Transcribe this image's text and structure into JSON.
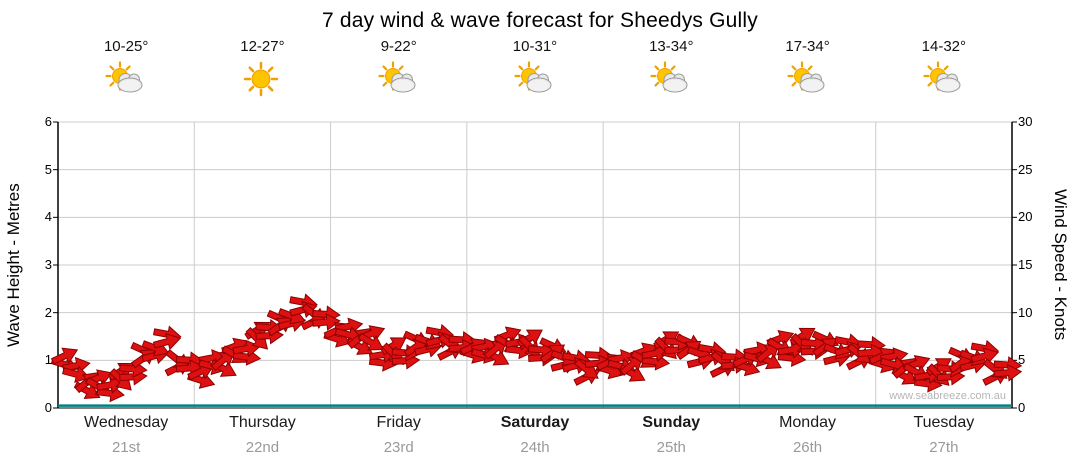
{
  "title": "7 day wind & wave forecast for Sheedys Gully",
  "watermark": "www.seabreeze.com.au",
  "colors": {
    "arrow_fill": "#dd1111",
    "arrow_stroke": "#8f0000",
    "wave_line": "#008080",
    "gridline": "#cccccc",
    "axis": "#000000",
    "date_text": "#9a9a9a"
  },
  "axes": {
    "left_label": "Wave Height - Metres",
    "right_label": "Wind Speed - Knots",
    "left_ticks": [
      0,
      1,
      2,
      3,
      4,
      5,
      6
    ],
    "right_ticks": [
      0,
      5,
      10,
      15,
      20,
      25,
      30
    ]
  },
  "days": [
    {
      "name": "Wednesday",
      "date": "21st",
      "temp": "10-25°",
      "icon": "partly-cloudy",
      "bold": false
    },
    {
      "name": "Thursday",
      "date": "22nd",
      "temp": "12-27°",
      "icon": "sunny",
      "bold": false
    },
    {
      "name": "Friday",
      "date": "23rd",
      "temp": "9-22°",
      "icon": "partly-cloudy",
      "bold": false
    },
    {
      "name": "Saturday",
      "date": "24th",
      "temp": "10-31°",
      "icon": "partly-cloudy",
      "bold": true
    },
    {
      "name": "Sunday",
      "date": "25th",
      "temp": "13-34°",
      "icon": "partly-cloudy",
      "bold": true
    },
    {
      "name": "Monday",
      "date": "26th",
      "temp": "17-34°",
      "icon": "partly-cloudy",
      "bold": false
    },
    {
      "name": "Tuesday",
      "date": "27th",
      "temp": "14-32°",
      "icon": "partly-cloudy",
      "bold": false
    }
  ],
  "chart_data": {
    "type": "scatter",
    "title": "7 day wind & wave forecast for Sheedys Gully",
    "x_axis": {
      "categories": [
        "Wednesday 21st",
        "Thursday 22nd",
        "Friday 23rd",
        "Saturday 24th",
        "Sunday 25th",
        "Monday 26th",
        "Tuesday 27th"
      ],
      "points_per_day": 12
    },
    "y_left": {
      "label": "Wave Height - Metres",
      "range": [
        0,
        6
      ]
    },
    "y_right": {
      "label": "Wind Speed - Knots",
      "range": [
        0,
        30
      ]
    },
    "grid": true,
    "series": [
      {
        "name": "Wind Speed",
        "unit": "knots",
        "axis": "right",
        "style": "red-direction-arrows",
        "values": [
          5,
          4,
          3,
          2.5,
          2.5,
          3,
          4,
          5,
          6,
          6.5,
          5.5,
          4.5,
          4,
          4.5,
          5,
          5.5,
          6,
          7,
          8,
          9,
          10,
          10.5,
          10,
          9,
          8,
          7.5,
          7,
          6.5,
          6,
          6,
          6,
          6.5,
          7,
          7,
          6.5,
          6,
          6,
          6,
          6.5,
          7,
          7,
          6.5,
          6,
          5.5,
          5,
          4,
          4.5,
          5,
          5,
          4.5,
          4.5,
          5,
          5.5,
          6,
          6.5,
          6.5,
          6,
          5.5,
          5,
          4.5,
          5,
          5,
          5.5,
          6,
          6.5,
          7,
          7,
          6.5,
          6,
          6,
          5.5,
          5.5,
          5,
          5,
          4.5,
          4,
          3.5,
          3.5,
          4,
          4.5,
          5,
          5,
          4.5,
          4
        ],
        "directions_deg": [
          -25,
          15,
          -40,
          30,
          -10,
          45,
          5,
          -35,
          20,
          -15,
          38,
          -5,
          -25,
          15,
          -40,
          30,
          -10,
          45,
          5,
          -35,
          20,
          -15,
          38,
          -5,
          -25,
          15,
          -40,
          30,
          -10,
          45,
          5,
          -35,
          20,
          -15,
          38,
          -5,
          -25,
          15,
          -40,
          30,
          -10,
          45,
          5,
          -35,
          20,
          -15,
          38,
          -5,
          -25,
          15,
          -40,
          30,
          -10,
          45,
          5,
          -35,
          20,
          -15,
          38,
          -5,
          -25,
          15,
          -40,
          30,
          -10,
          45,
          5,
          -35,
          20,
          -15,
          38,
          -5,
          -25,
          15,
          -40,
          30,
          -10,
          45,
          5,
          -35,
          20,
          -15,
          38,
          -5
        ]
      },
      {
        "name": "Wave Height",
        "unit": "metres",
        "axis": "left",
        "style": "teal-line",
        "values": [
          0.05,
          0.05,
          0.05,
          0.05,
          0.05,
          0.05,
          0.05
        ]
      }
    ]
  }
}
